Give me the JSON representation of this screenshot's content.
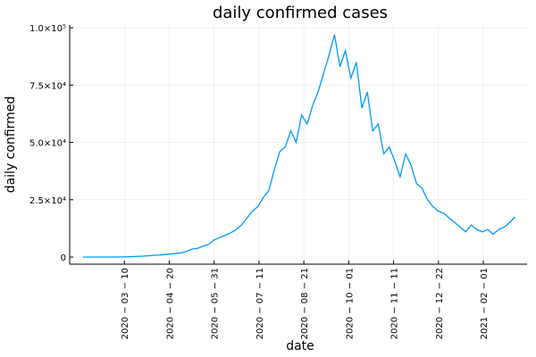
{
  "chart_data": {
    "type": "line",
    "title": "daily confirmed cases",
    "x_label": "date",
    "y_label": "daily confirmed",
    "x": [
      "2020-02-01",
      "2020-02-06",
      "2020-02-11",
      "2020-02-16",
      "2020-02-21",
      "2020-02-26",
      "2020-03-02",
      "2020-03-07",
      "2020-03-12",
      "2020-03-17",
      "2020-03-22",
      "2020-03-27",
      "2020-04-01",
      "2020-04-06",
      "2020-04-11",
      "2020-04-16",
      "2020-04-21",
      "2020-04-26",
      "2020-05-01",
      "2020-05-06",
      "2020-05-11",
      "2020-05-16",
      "2020-05-21",
      "2020-05-26",
      "2020-05-31",
      "2020-06-05",
      "2020-06-10",
      "2020-06-15",
      "2020-06-20",
      "2020-06-25",
      "2020-06-30",
      "2020-07-05",
      "2020-07-10",
      "2020-07-15",
      "2020-07-20",
      "2020-07-25",
      "2020-07-30",
      "2020-08-04",
      "2020-08-09",
      "2020-08-14",
      "2020-08-19",
      "2020-08-24",
      "2020-08-29",
      "2020-09-03",
      "2020-09-08",
      "2020-09-13",
      "2020-09-18",
      "2020-09-23",
      "2020-09-28",
      "2020-10-03",
      "2020-10-08",
      "2020-10-13",
      "2020-10-18",
      "2020-10-23",
      "2020-10-28",
      "2020-11-02",
      "2020-11-07",
      "2020-11-12",
      "2020-11-17",
      "2020-11-22",
      "2020-11-27",
      "2020-12-02",
      "2020-12-07",
      "2020-12-12",
      "2020-12-17",
      "2020-12-22",
      "2020-12-27",
      "2021-01-01",
      "2021-01-06",
      "2021-01-11",
      "2021-01-16",
      "2021-01-21",
      "2021-01-26",
      "2021-01-31",
      "2021-02-05",
      "2021-02-10",
      "2021-02-15",
      "2021-02-20",
      "2021-02-25",
      "2021-03-02"
    ],
    "series": [
      {
        "color": "#009af9",
        "values": [
          0,
          0,
          0,
          0,
          0,
          0,
          0,
          50,
          100,
          200,
          300,
          400,
          600,
          800,
          900,
          1100,
          1300,
          1600,
          1800,
          2500,
          3500,
          3800,
          4800,
          5500,
          7500,
          8500,
          9500,
          10500,
          12000,
          14000,
          17000,
          20000,
          22000,
          26000,
          29000,
          38000,
          46000,
          48000,
          55000,
          50000,
          62000,
          58000,
          66000,
          72000,
          80000,
          88000,
          97000,
          83000,
          90000,
          78000,
          85000,
          65000,
          72000,
          55000,
          58000,
          45000,
          48000,
          42000,
          35000,
          45000,
          40000,
          32000,
          30000,
          25000,
          22000,
          20000,
          19000,
          17000,
          15000,
          13000,
          11000,
          14000,
          12000,
          11000,
          12000,
          10000,
          12000,
          13000,
          15000,
          17500
        ]
      }
    ],
    "xlim": [
      "2020-01-20",
      "2021-03-13"
    ],
    "xticks": [
      {
        "value": "2020-03-10",
        "label": "2020 − 03 − 10"
      },
      {
        "value": "2020-04-20",
        "label": "2020 − 04 − 20"
      },
      {
        "value": "2020-05-31",
        "label": "2020 − 05 − 31"
      },
      {
        "value": "2020-07-11",
        "label": "2020 − 07 − 11"
      },
      {
        "value": "2020-08-21",
        "label": "2020 − 08 − 21"
      },
      {
        "value": "2020-10-01",
        "label": "2020 − 10 − 01"
      },
      {
        "value": "2020-11-11",
        "label": "2020 − 11 − 11"
      },
      {
        "value": "2020-12-22",
        "label": "2020 − 12 − 22"
      },
      {
        "value": "2021-02-01",
        "label": "2021 − 02 − 01"
      }
    ],
    "ylim": [
      -3100,
      101200
    ],
    "yticks": [
      0,
      {
        "value": 25000,
        "label": "2.5×10⁴"
      },
      {
        "value": 50000,
        "label": "5.0×10⁴"
      },
      {
        "value": 75000,
        "label": "7.5×10⁴"
      },
      {
        "value": 100000,
        "label": "1.0×10⁵"
      }
    ],
    "grid": true
  }
}
